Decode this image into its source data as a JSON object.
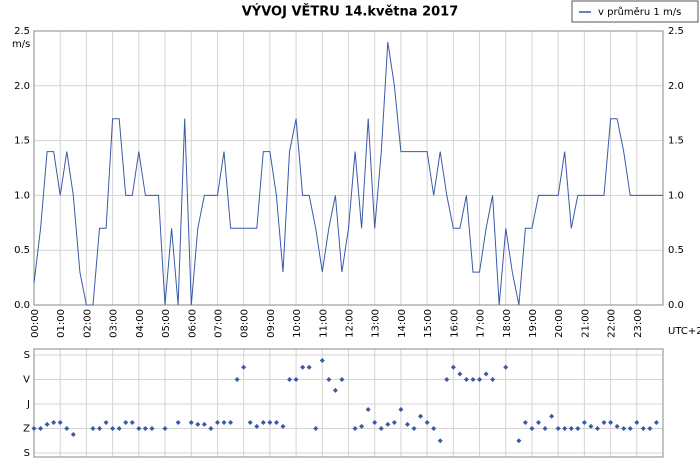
{
  "chart_data": [
    {
      "type": "line",
      "title": "VÝVOJ VĚTRU  14.května 2017",
      "y_label": "m/s",
      "x_label": "UTC+2",
      "xlim": [
        0,
        24
      ],
      "ylim": [
        0,
        2.5
      ],
      "yticks": [
        {
          "value": 0,
          "label": "0.0"
        },
        {
          "value": 0.5,
          "label": "0.5"
        },
        {
          "value": 1,
          "label": "1.0"
        },
        {
          "value": 1.5,
          "label": "1.5"
        },
        {
          "value": 2,
          "label": "2.0"
        },
        {
          "value": 2.5,
          "label": "2.5"
        }
      ],
      "xticks": [
        {
          "value": 0,
          "label": "00:00"
        },
        {
          "value": 1,
          "label": "01:00"
        },
        {
          "value": 2,
          "label": "02:00"
        },
        {
          "value": 3,
          "label": "03:00"
        },
        {
          "value": 4,
          "label": "04:00"
        },
        {
          "value": 5,
          "label": "05:00"
        },
        {
          "value": 6,
          "label": "06:00"
        },
        {
          "value": 7,
          "label": "07:00"
        },
        {
          "value": 8,
          "label": "08:00"
        },
        {
          "value": 9,
          "label": "09:00"
        },
        {
          "value": 10,
          "label": "10:00"
        },
        {
          "value": 11,
          "label": "11:00"
        },
        {
          "value": 12,
          "label": "12:00"
        },
        {
          "value": 13,
          "label": "13:00"
        },
        {
          "value": 14,
          "label": "14:00"
        },
        {
          "value": 15,
          "label": "15:00"
        },
        {
          "value": 16,
          "label": "16:00"
        },
        {
          "value": 17,
          "label": "17:00"
        },
        {
          "value": 18,
          "label": "18:00"
        },
        {
          "value": 19,
          "label": "19:00"
        },
        {
          "value": 20,
          "label": "20:00"
        },
        {
          "value": 21,
          "label": "21:00"
        },
        {
          "value": 22,
          "label": "22:00"
        },
        {
          "value": 23,
          "label": "23:00"
        }
      ],
      "grid": true,
      "legend": "top-right",
      "x": [
        0,
        0.25,
        0.5,
        0.75,
        1,
        1.25,
        1.5,
        1.75,
        2,
        2.25,
        2.5,
        2.75,
        3,
        3.25,
        3.5,
        3.75,
        4,
        4.25,
        4.5,
        4.75,
        5,
        5.25,
        5.5,
        5.75,
        6,
        6.25,
        6.5,
        6.75,
        7,
        7.25,
        7.5,
        7.75,
        8,
        8.25,
        8.5,
        8.75,
        9,
        9.25,
        9.5,
        9.75,
        10,
        10.25,
        10.5,
        10.75,
        11,
        11.25,
        11.5,
        11.75,
        12,
        12.25,
        12.5,
        12.75,
        13,
        13.25,
        13.5,
        13.75,
        14,
        14.25,
        14.5,
        14.75,
        15,
        15.25,
        15.5,
        15.75,
        16,
        16.25,
        16.5,
        16.75,
        17,
        17.25,
        17.5,
        17.75,
        18,
        18.25,
        18.5,
        18.75,
        19,
        19.25,
        19.5,
        19.75,
        20,
        20.25,
        20.5,
        20.75,
        21,
        21.25,
        21.5,
        21.75,
        22,
        22.25,
        22.5,
        22.75,
        23,
        23.25,
        23.5,
        23.75,
        24
      ],
      "series": [
        {
          "name": "v průměru 1 m/s",
          "color": "#3a5aa8",
          "values": [
            0.2,
            0.7,
            1.4,
            1.4,
            1.0,
            1.4,
            1.0,
            0.3,
            0.0,
            0.0,
            0.7,
            0.7,
            1.7,
            1.7,
            1.0,
            1.0,
            1.4,
            1.0,
            1.0,
            1.0,
            0.0,
            0.7,
            0.0,
            1.7,
            0.0,
            0.7,
            1.0,
            1.0,
            1.0,
            1.4,
            0.7,
            0.7,
            0.7,
            0.7,
            0.7,
            1.4,
            1.4,
            1.0,
            0.3,
            1.4,
            1.7,
            1.0,
            1.0,
            0.7,
            0.3,
            0.7,
            1.0,
            0.3,
            0.7,
            1.4,
            0.7,
            1.7,
            0.7,
            1.4,
            2.4,
            2.0,
            1.4,
            1.4,
            1.4,
            1.4,
            1.4,
            1.0,
            1.4,
            1.0,
            0.7,
            0.7,
            1.0,
            0.3,
            0.3,
            0.7,
            1.0,
            0.0,
            0.7,
            0.3,
            0.0,
            0.7,
            0.7,
            1.0,
            1.0,
            1.0,
            1.0,
            1.4,
            0.7,
            1.0,
            1.0,
            1.0,
            1.0,
            1.0,
            1.7,
            1.7,
            1.4,
            1.0,
            1.0,
            1.0,
            1.0,
            1.0,
            1.0
          ]
        }
      ]
    },
    {
      "type": "scatter",
      "color": "#3a5aa8",
      "xlim": [
        0,
        24
      ],
      "ylim": [
        0,
        360
      ],
      "yticks": [
        {
          "value": 0,
          "label": "S"
        },
        {
          "value": 90,
          "label": "V"
        },
        {
          "value": 180,
          "label": "J"
        },
        {
          "value": 270,
          "label": "Z"
        },
        {
          "value": 360,
          "label": "S"
        }
      ],
      "x": [
        0,
        0.25,
        0.5,
        0.75,
        1,
        1.25,
        1.5,
        1.75,
        2,
        2.25,
        2.5,
        2.75,
        3,
        3.25,
        3.5,
        3.75,
        4,
        4.25,
        4.5,
        4.75,
        5,
        5.25,
        5.5,
        5.75,
        6,
        6.25,
        6.5,
        6.75,
        7,
        7.25,
        7.5,
        7.75,
        8,
        8.25,
        8.5,
        8.75,
        9,
        9.25,
        9.5,
        9.75,
        10,
        10.25,
        10.5,
        10.75,
        11,
        11.25,
        11.5,
        11.75,
        12,
        12.25,
        12.5,
        12.75,
        13,
        13.25,
        13.5,
        13.75,
        14,
        14.25,
        14.5,
        14.75,
        15,
        15.25,
        15.5,
        15.75,
        16,
        16.25,
        16.5,
        16.75,
        17,
        17.25,
        17.5,
        17.75,
        18,
        18.25,
        18.5,
        18.75,
        19,
        19.25,
        19.5,
        19.75,
        20,
        20.25,
        20.5,
        20.75,
        21,
        21.25,
        21.5,
        21.75,
        22,
        22.25,
        22.5,
        22.75,
        23,
        23.25,
        23.5,
        23.75
      ],
      "values": [
        270,
        270,
        255,
        248,
        248,
        270,
        292,
        null,
        null,
        270,
        270,
        248,
        270,
        270,
        248,
        248,
        270,
        270,
        270,
        null,
        270,
        null,
        248,
        null,
        248,
        255,
        255,
        270,
        248,
        248,
        248,
        90,
        45,
        248,
        262,
        248,
        248,
        248,
        262,
        90,
        90,
        45,
        45,
        270,
        20,
        90,
        130,
        90,
        null,
        270,
        262,
        200,
        248,
        270,
        255,
        248,
        200,
        255,
        270,
        225,
        248,
        270,
        315,
        90,
        45,
        70,
        90,
        90,
        90,
        70,
        90,
        null,
        45,
        null,
        315,
        248,
        270,
        248,
        270,
        225,
        270,
        270,
        270,
        270,
        248,
        262,
        270,
        248,
        248,
        262,
        270,
        270,
        248,
        270,
        270,
        248
      ]
    }
  ]
}
